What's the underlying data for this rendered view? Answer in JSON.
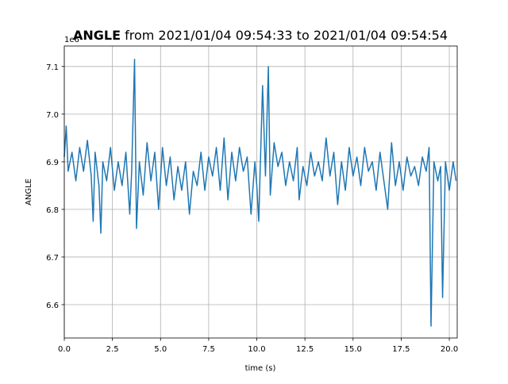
{
  "chart_data": {
    "type": "line",
    "title_bold": "ANGLE",
    "title": "from 2021/01/04 09:54:33 to 2021/01/04 09:54:54",
    "offset_label": "1e6",
    "x_label": "time (s)",
    "y_label": "ANGLE",
    "grid": true,
    "xlim": [
      0,
      20.41
    ],
    "ylim": [
      6.53,
      7.143
    ],
    "xticks": [
      {
        "value": 0,
        "label": "0.0"
      },
      2.5,
      {
        "value": 5,
        "label": "5.0"
      },
      7.5,
      {
        "value": 10,
        "label": "10.0"
      },
      12.5,
      {
        "value": 15,
        "label": "15.0"
      },
      17.5,
      {
        "value": 20,
        "label": "20.0"
      }
    ],
    "yticks": [
      6.6,
      6.7,
      6.8,
      6.9,
      {
        "value": 7,
        "label": "7.0"
      },
      7.1
    ],
    "x": [
      0,
      0.1,
      0.2,
      0.4,
      0.6,
      0.8,
      1.0,
      1.2,
      1.4,
      1.5,
      1.6,
      1.8,
      1.9,
      2.0,
      2.2,
      2.4,
      2.6,
      2.8,
      3.0,
      3.2,
      3.4,
      3.5,
      3.65,
      3.75,
      3.9,
      4.1,
      4.3,
      4.5,
      4.7,
      4.9,
      5.1,
      5.3,
      5.5,
      5.7,
      5.9,
      6.1,
      6.3,
      6.5,
      6.7,
      6.9,
      7.1,
      7.3,
      7.5,
      7.7,
      7.9,
      8.1,
      8.3,
      8.5,
      8.7,
      8.9,
      9.1,
      9.3,
      9.5,
      9.7,
      9.9,
      10.0,
      10.1,
      10.3,
      10.45,
      10.6,
      10.7,
      10.9,
      11.1,
      11.3,
      11.5,
      11.7,
      11.9,
      12.1,
      12.2,
      12.4,
      12.6,
      12.8,
      13.0,
      13.2,
      13.4,
      13.6,
      13.8,
      14.0,
      14.2,
      14.4,
      14.6,
      14.8,
      15.0,
      15.2,
      15.4,
      15.6,
      15.8,
      16.0,
      16.2,
      16.4,
      16.6,
      16.8,
      17.0,
      17.2,
      17.4,
      17.6,
      17.8,
      18.0,
      18.2,
      18.4,
      18.6,
      18.8,
      18.95,
      19.05,
      19.2,
      19.4,
      19.55,
      19.65,
      19.8,
      20.0,
      20.2,
      20.35
    ],
    "series": [
      {
        "name": "ANGLE",
        "color": "#1f77b4",
        "values": [
          6.91,
          6.975,
          6.88,
          6.92,
          6.86,
          6.93,
          6.88,
          6.945,
          6.87,
          6.775,
          6.92,
          6.85,
          6.75,
          6.9,
          6.86,
          6.93,
          6.84,
          6.9,
          6.85,
          6.92,
          6.79,
          6.88,
          7.115,
          6.76,
          6.9,
          6.83,
          6.94,
          6.86,
          6.92,
          6.8,
          6.93,
          6.85,
          6.91,
          6.82,
          6.89,
          6.84,
          6.9,
          6.79,
          6.88,
          6.85,
          6.92,
          6.84,
          6.91,
          6.87,
          6.93,
          6.84,
          6.95,
          6.82,
          6.92,
          6.86,
          6.93,
          6.88,
          6.91,
          6.79,
          6.9,
          6.85,
          6.775,
          7.06,
          6.87,
          7.1,
          6.83,
          6.94,
          6.89,
          6.92,
          6.85,
          6.9,
          6.86,
          6.93,
          6.82,
          6.89,
          6.85,
          6.92,
          6.87,
          6.9,
          6.86,
          6.95,
          6.87,
          6.92,
          6.81,
          6.9,
          6.84,
          6.93,
          6.87,
          6.91,
          6.85,
          6.93,
          6.88,
          6.9,
          6.84,
          6.92,
          6.86,
          6.8,
          6.94,
          6.85,
          6.9,
          6.84,
          6.91,
          6.87,
          6.89,
          6.85,
          6.91,
          6.88,
          6.93,
          6.555,
          6.9,
          6.86,
          6.89,
          6.615,
          6.9,
          6.84,
          6.9,
          6.86
        ]
      }
    ]
  }
}
